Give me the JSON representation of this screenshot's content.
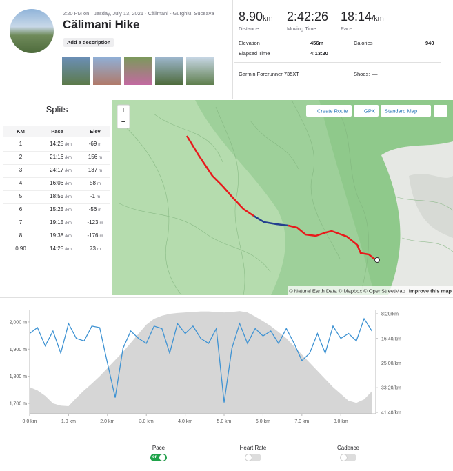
{
  "header": {
    "datetime": "2:20 PM on Tuesday, July 13, 2021 · Călimani - Gurghiu, Suceava",
    "title": "Călimani Hike",
    "button": "Add a description"
  },
  "stats": [
    {
      "value": "8.90",
      "unit": "km",
      "label": "Distance"
    },
    {
      "value": "2:42:26",
      "unit": "",
      "label": "Moving Time"
    },
    {
      "value": "18:14",
      "unit": "/km",
      "label": "Pace"
    }
  ],
  "details": {
    "elevation": {
      "label": "Elevation",
      "value": "456m"
    },
    "elapsed": {
      "label": "Elapsed Time",
      "value": "4:13:20"
    },
    "calories": {
      "label": "Calories",
      "value": "940"
    },
    "device": "Garmin Forerunner 735XT",
    "shoes": {
      "label": "Shoes:",
      "value": "—"
    }
  },
  "splits": {
    "title": "Splits",
    "columns": [
      "KM",
      "Pace",
      "Elev"
    ],
    "units": {
      "pace": "/km",
      "elev": "m"
    },
    "rows": [
      [
        "1",
        "14:25",
        "-69"
      ],
      [
        "2",
        "21:16",
        "156"
      ],
      [
        "3",
        "24:17",
        "137"
      ],
      [
        "4",
        "16:06",
        "58"
      ],
      [
        "5",
        "18:55",
        "-1"
      ],
      [
        "6",
        "15:25",
        "-56"
      ],
      [
        "7",
        "19:15",
        "-123"
      ],
      [
        "8",
        "19:38",
        "-176"
      ],
      [
        "0.90",
        "14:25",
        "73"
      ]
    ]
  },
  "map": {
    "zoom_in": "+",
    "zoom_out": "−",
    "buttons": [
      "Create Route",
      "GPX",
      "Standard Map"
    ],
    "attribution": "© Natural Earth Data © Mapbox © OpenStreetMap",
    "improve": "Improve this map"
  },
  "chart_data": {
    "type": "line",
    "x": [
      0,
      0.2,
      0.4,
      0.6,
      0.8,
      1.0,
      1.2,
      1.4,
      1.6,
      1.8,
      2.0,
      2.2,
      2.4,
      2.6,
      2.8,
      3.0,
      3.2,
      3.4,
      3.6,
      3.8,
      4.0,
      4.2,
      4.4,
      4.6,
      4.8,
      5.0,
      5.2,
      5.4,
      5.6,
      5.8,
      6.0,
      6.2,
      6.4,
      6.6,
      6.8,
      7.0,
      7.2,
      7.4,
      7.6,
      7.8,
      8.0,
      8.2,
      8.4,
      8.6,
      8.8
    ],
    "xlim": [
      0,
      8.9
    ],
    "xticks": [
      {
        "value": 0,
        "label": "0.0 km"
      },
      {
        "value": 1,
        "label": "1.0 km"
      },
      {
        "value": 2,
        "label": "2.0 km"
      },
      {
        "value": 3,
        "label": "3.0 km"
      },
      {
        "value": 4,
        "label": "4.0 km"
      },
      {
        "value": 5,
        "label": "5.0 km"
      },
      {
        "value": 6,
        "label": "6.0 km"
      },
      {
        "value": 7,
        "label": "7.0 km"
      },
      {
        "value": 8,
        "label": "8.0 km"
      }
    ],
    "ylim": [
      1662,
      2043
    ],
    "yticks": [
      {
        "value": 1700,
        "label": "1,700 m"
      },
      {
        "value": 1800,
        "label": "1,800 m"
      },
      {
        "value": 1900,
        "label": "1,900 m"
      },
      {
        "value": 2000,
        "label": "2,000 m"
      }
    ],
    "y2lim": [
      430,
      2528
    ],
    "y2_inverted": true,
    "y2ticks": [
      {
        "value": 500,
        "label": "8:20/km"
      },
      {
        "value": 1000,
        "label": "16:40/km"
      },
      {
        "value": 1500,
        "label": "25:00/km"
      },
      {
        "value": 2000,
        "label": "33:20/km"
      },
      {
        "value": 2500,
        "label": "41:40/km"
      }
    ],
    "series": [
      {
        "color": "#d6d6d6",
        "fill": true,
        "values": [
          1760,
          1748,
          1728,
          1700,
          1692,
          1690,
          1720,
          1748,
          1773,
          1800,
          1830,
          1860,
          1890,
          1923,
          1957,
          1990,
          2012,
          2023,
          2030,
          2033,
          2035,
          2037,
          2039,
          2039,
          2037,
          2035,
          2037,
          2040,
          2035,
          2020,
          2003,
          1985,
          1963,
          1940,
          1910,
          1880,
          1850,
          1820,
          1790,
          1760,
          1735,
          1710,
          1702,
          1715,
          1745
        ]
      },
      {
        "name": "Pace",
        "color": "#3f93d3",
        "axis": "y2",
        "values": [
          900,
          780,
          1150,
          850,
          1300,
          700,
          1000,
          1050,
          750,
          780,
          1500,
          2200,
          1200,
          850,
          1000,
          1100,
          750,
          800,
          1300,
          700,
          900,
          750,
          1000,
          1100,
          800,
          2300,
          1200,
          700,
          1100,
          800,
          950,
          850,
          1100,
          800,
          1100,
          1450,
          1300,
          900,
          1300,
          750,
          1000,
          900,
          1050,
          600,
          850
        ]
      }
    ]
  },
  "toggles": [
    {
      "label": "Pace",
      "state": "on"
    },
    {
      "label": "Heart Rate",
      "state": null
    },
    {
      "label": "Cadence",
      "state": null
    }
  ]
}
